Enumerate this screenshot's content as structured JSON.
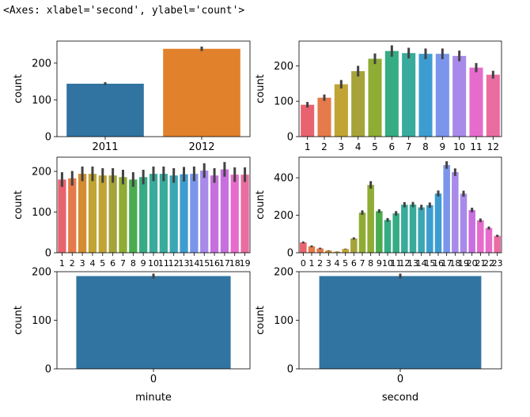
{
  "output_repr": "<Axes: xlabel='second', ylabel='count'>",
  "colors": {
    "blue": "#3274a1",
    "orange": "#e1812c",
    "husl": [
      "#e8636f",
      "#e57a4a",
      "#d48c31",
      "#c1a433",
      "#a6a33b",
      "#8fac34",
      "#4aac4f",
      "#36ac84",
      "#39ab9c",
      "#3ba7b3",
      "#3e9dd0",
      "#7a95eb",
      "#a78ae9",
      "#c86fe0",
      "#e66ccc",
      "#ea6da2"
    ],
    "errbar": "#424242",
    "axis": "#000000"
  },
  "chart_data": [
    {
      "id": "year",
      "type": "bar",
      "palette": "default2",
      "categories": [
        "2011",
        "2012"
      ],
      "values": [
        144,
        239
      ],
      "err": [
        4,
        6
      ],
      "ylim": [
        0,
        260
      ],
      "yticks": [
        0,
        100,
        200
      ],
      "xlabel": "",
      "ylabel": "count"
    },
    {
      "id": "month",
      "type": "bar",
      "palette": "husl",
      "categories": [
        "1",
        "2",
        "3",
        "4",
        "5",
        "6",
        "7",
        "8",
        "9",
        "10",
        "11",
        "12"
      ],
      "values": [
        90,
        110,
        148,
        185,
        220,
        242,
        236,
        234,
        234,
        228,
        195,
        175
      ],
      "err": [
        8,
        9,
        12,
        15,
        15,
        16,
        15,
        15,
        15,
        15,
        13,
        11
      ],
      "ylim": [
        0,
        270
      ],
      "yticks": [
        0,
        100,
        200
      ],
      "xlabel": "",
      "ylabel": "count"
    },
    {
      "id": "day",
      "type": "bar",
      "palette": "husl",
      "categories": [
        "1",
        "2",
        "3",
        "4",
        "5",
        "6",
        "7",
        "8",
        "9",
        "10",
        "11",
        "12",
        "13",
        "14",
        "15",
        "16",
        "17",
        "18",
        "19"
      ],
      "values": [
        180,
        183,
        194,
        194,
        190,
        190,
        186,
        180,
        186,
        194,
        194,
        190,
        193,
        194,
        202,
        190,
        205,
        192,
        192
      ],
      "err": [
        18,
        18,
        18,
        18,
        18,
        18,
        18,
        18,
        18,
        18,
        18,
        18,
        18,
        18,
        18,
        18,
        18,
        18,
        18
      ],
      "ylim": [
        0,
        235
      ],
      "yticks": [
        0,
        100,
        200
      ],
      "xlabel": "",
      "ylabel": "count"
    },
    {
      "id": "hour",
      "type": "bar",
      "palette": "husl",
      "categories": [
        "0",
        "1",
        "2",
        "3",
        "4",
        "5",
        "6",
        "7",
        "8",
        "9",
        "10",
        "11",
        "12",
        "13",
        "14",
        "15",
        "16",
        "17",
        "18",
        "19",
        "20",
        "21",
        "22",
        "23"
      ],
      "values": [
        55,
        34,
        23,
        11,
        6,
        20,
        76,
        214,
        362,
        222,
        175,
        210,
        256,
        257,
        242,
        254,
        316,
        468,
        430,
        315,
        228,
        173,
        132,
        90
      ],
      "err": [
        5,
        5,
        4,
        2,
        1,
        2,
        6,
        12,
        20,
        10,
        10,
        12,
        14,
        14,
        14,
        14,
        16,
        20,
        20,
        16,
        12,
        10,
        8,
        6
      ],
      "ylim": [
        0,
        510
      ],
      "yticks": [
        0,
        200,
        400
      ],
      "xlabel": "",
      "ylabel": "count"
    },
    {
      "id": "minute",
      "type": "bar",
      "palette": "single",
      "categories": [
        "0"
      ],
      "values": [
        191
      ],
      "err": [
        5
      ],
      "ylim": [
        0,
        200
      ],
      "yticks": [
        0,
        100,
        200
      ],
      "xlabel": "minute",
      "ylabel": "count"
    },
    {
      "id": "second",
      "type": "bar",
      "palette": "single",
      "categories": [
        "0"
      ],
      "values": [
        191
      ],
      "err": [
        5
      ],
      "ylim": [
        0,
        200
      ],
      "yticks": [
        0,
        100,
        200
      ],
      "xlabel": "second",
      "ylabel": "count"
    }
  ]
}
